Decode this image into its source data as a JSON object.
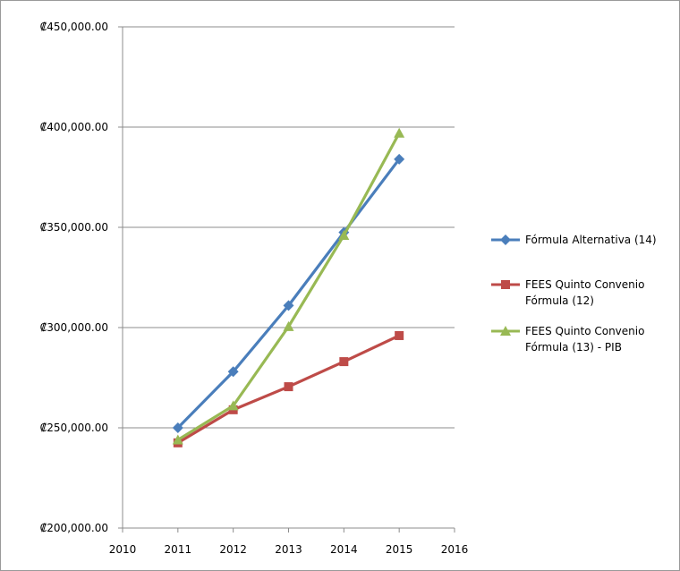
{
  "chart_data": {
    "type": "line",
    "title": "",
    "xlabel": "",
    "ylabel": "",
    "x": [
      2011,
      2012,
      2013,
      2014,
      2015
    ],
    "xlim": [
      2010,
      2016
    ],
    "ylim": [
      200000,
      450000
    ],
    "x_ticks": [
      "2010",
      "2011",
      "2012",
      "2013",
      "2014",
      "2015",
      "2016"
    ],
    "y_ticks": [
      {
        "value": 200000,
        "label": "₡200,000.00"
      },
      {
        "value": 250000,
        "label": "₡250,000.00"
      },
      {
        "value": 300000,
        "label": "₡300,000.00"
      },
      {
        "value": 350000,
        "label": "₡350,000.00"
      },
      {
        "value": 400000,
        "label": "₡400,000.00"
      },
      {
        "value": 450000,
        "label": "₡450,000.00"
      }
    ],
    "grid": "horizontal",
    "legend_position": "right",
    "series": [
      {
        "name_lines": [
          "Fórmula Alternativa (14)"
        ],
        "color": "#4a7ebb",
        "marker": "diamond",
        "values": [
          250000,
          278000,
          311000,
          347500,
          384000
        ]
      },
      {
        "name_lines": [
          "FEES Quinto Convenio",
          "Fórmula (12)"
        ],
        "color": "#be4b48",
        "marker": "square",
        "values": [
          242500,
          259000,
          270500,
          283000,
          296000
        ]
      },
      {
        "name_lines": [
          "FEES Quinto Convenio",
          "Fórmula (13) - PIB"
        ],
        "color": "#98b954",
        "marker": "triangle",
        "values": [
          244000,
          261000,
          300500,
          346000,
          397000
        ]
      }
    ]
  }
}
